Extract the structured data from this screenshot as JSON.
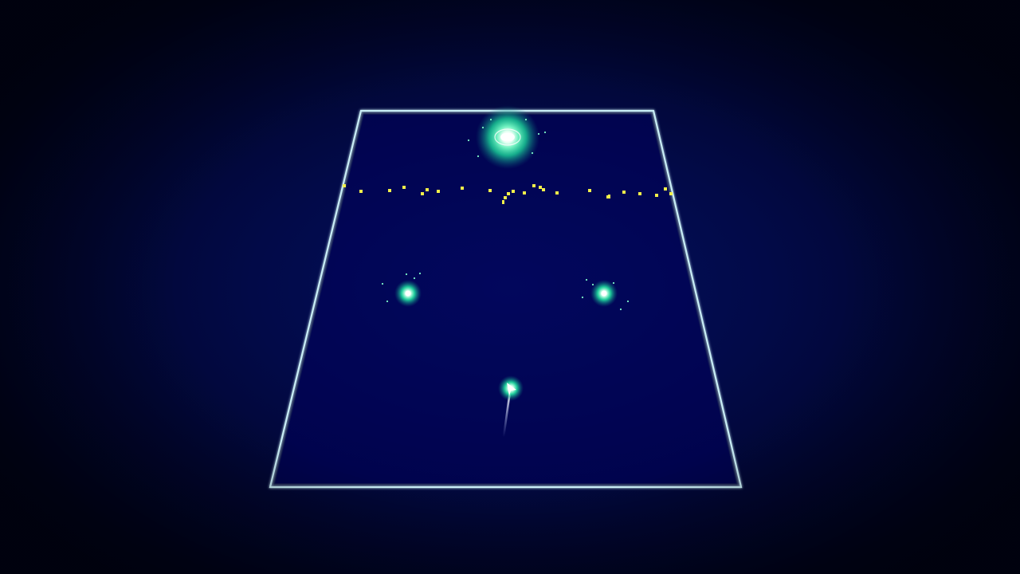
{
  "game": {
    "colors": {
      "background": "#020a48",
      "arena_border": "#bfe6f0",
      "orb_glow": "#1fe0a0",
      "orb_core": "#eafff6",
      "barrier": "#e6e62a",
      "trail": "#dfe8ff"
    },
    "arena": {
      "shape": "trapezoid-perspective"
    },
    "barrier": {
      "type": "yellow-particle-line"
    },
    "entities": [
      {
        "kind": "target-orb",
        "size": "large"
      },
      {
        "kind": "enemy-orb",
        "size": "small"
      },
      {
        "kind": "enemy-orb",
        "size": "small"
      },
      {
        "kind": "player-ship",
        "has_trail": true
      }
    ]
  }
}
